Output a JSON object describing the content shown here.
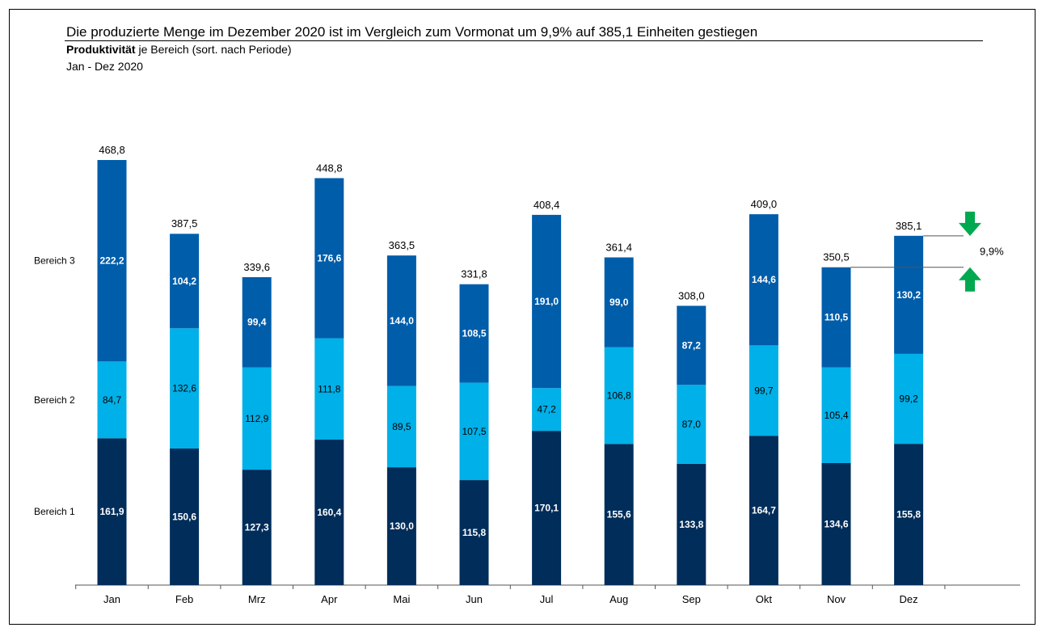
{
  "title": "Die produzierte Menge im Dezember 2020 ist im Vergleich zum Vormonat um 9,9% auf 385,1 Einheiten gestiegen",
  "subtitle_bold": "Produktivität",
  "subtitle_rest": " je Bereich (sort. nach Periode)",
  "period": "Jan - Dez 2020",
  "chart_data": {
    "type": "bar",
    "stacked": true,
    "categories": [
      "Jan",
      "Feb",
      "Mrz",
      "Apr",
      "Mai",
      "Jun",
      "Jul",
      "Aug",
      "Sep",
      "Okt",
      "Nov",
      "Dez"
    ],
    "series": [
      {
        "name": "Bereich 1",
        "color": "#002D5A",
        "values": [
          161.9,
          150.6,
          127.3,
          160.4,
          130.0,
          115.8,
          170.1,
          155.6,
          133.8,
          164.7,
          134.6,
          155.8
        ],
        "labels": [
          "161,9",
          "150,6",
          "127,3",
          "160,4",
          "130,0",
          "115,8",
          "170,1",
          "155,6",
          "133,8",
          "164,7",
          "134,6",
          "155,8"
        ]
      },
      {
        "name": "Bereich 2",
        "color": "#00B0E8",
        "values": [
          84.7,
          132.6,
          112.9,
          111.8,
          89.5,
          107.5,
          47.2,
          106.8,
          87.0,
          99.7,
          105.4,
          99.2
        ],
        "labels": [
          "84,7",
          "132,6",
          "112,9",
          "111,8",
          "89,5",
          "107,5",
          "47,2",
          "106,8",
          "87,0",
          "99,7",
          "105,4",
          "99,2"
        ]
      },
      {
        "name": "Bereich 3",
        "color": "#005DAA",
        "values": [
          222.2,
          104.2,
          99.4,
          176.6,
          144.0,
          108.5,
          191.0,
          99.0,
          87.2,
          144.6,
          110.5,
          130.2
        ],
        "labels": [
          "222,2",
          "104,2",
          "99,4",
          "176,6",
          "144,0",
          "108,5",
          "191,0",
          "99,0",
          "87,2",
          "144,6",
          "110,5",
          "130,2"
        ]
      }
    ],
    "totals": [
      468.8,
      387.5,
      339.6,
      448.8,
      363.5,
      331.8,
      408.4,
      361.4,
      308.0,
      409.0,
      350.5,
      385.1
    ],
    "total_labels": [
      "468,8",
      "387,5",
      "339,6",
      "448,8",
      "363,5",
      "331,8",
      "408,4",
      "361,4",
      "308,0",
      "409,0",
      "350,5",
      "385,1"
    ],
    "ylim": [
      0,
      500
    ],
    "grid": false,
    "legend_position": "left",
    "inner_label_colors": [
      "#ffffff",
      "#000000",
      "#ffffff"
    ],
    "annotation": {
      "label": "9,9%",
      "from": "Nov",
      "to": "Dez",
      "arrow_color": "#00A94F",
      "arrow_icons": [
        "arrow-down-icon",
        "arrow-up-icon"
      ]
    }
  }
}
